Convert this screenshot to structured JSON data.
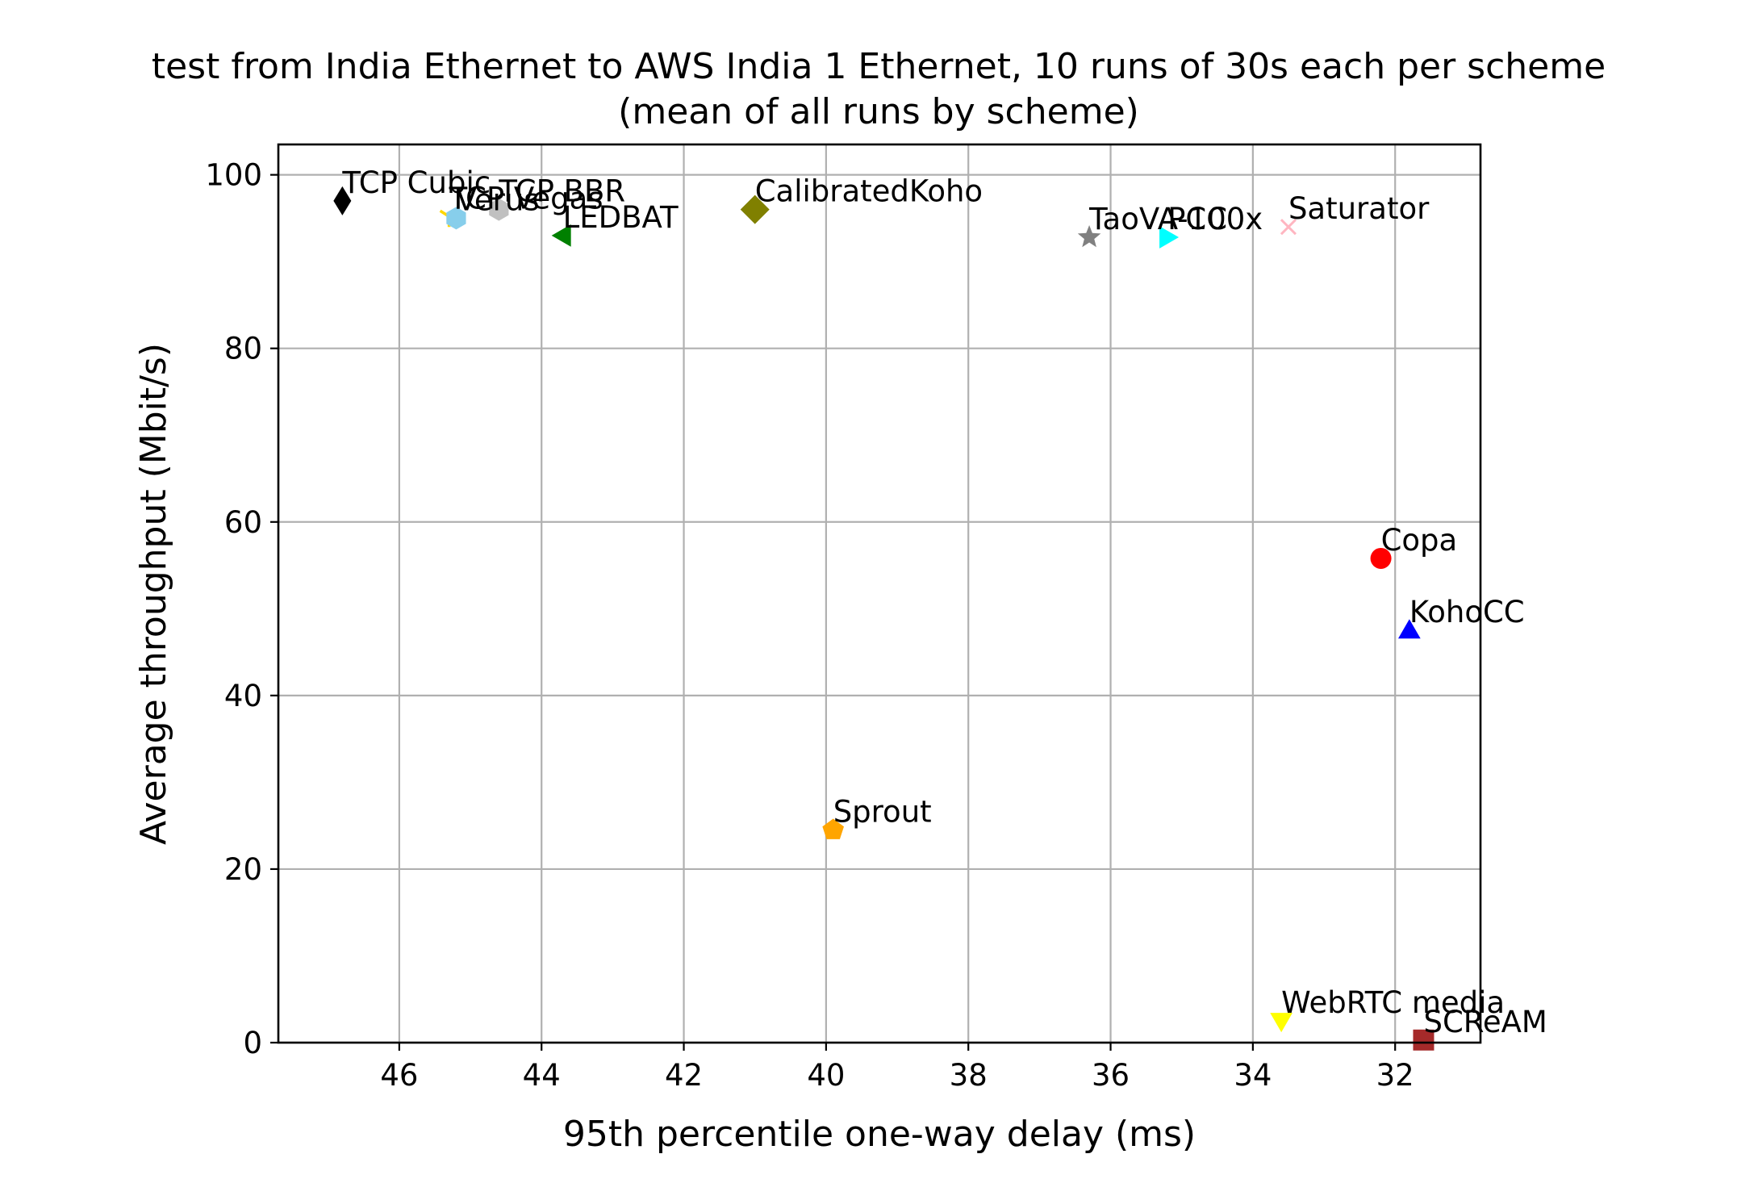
{
  "chart_data": {
    "type": "scatter",
    "title": "test from India Ethernet to AWS India 1 Ethernet, 10 runs of 30s each per scheme",
    "subtitle": "(mean of all runs by scheme)",
    "xlabel": "95th percentile one-way delay (ms)",
    "ylabel": "Average throughput (Mbit/s)",
    "xlim": [
      47.7,
      30.8
    ],
    "ylim": [
      0,
      103.5
    ],
    "x_inverted": true,
    "grid": true,
    "x_ticks": [
      46,
      44,
      42,
      40,
      38,
      36,
      34,
      32
    ],
    "y_ticks": [
      0,
      20,
      40,
      60,
      80,
      100
    ],
    "points": [
      {
        "label": "TCP Cubic",
        "x": 46.8,
        "y": 97.0,
        "marker": "thin_diamond",
        "color": "#000000"
      },
      {
        "label": "TCP BBR",
        "x": 44.6,
        "y": 96.0,
        "marker": "hexagon",
        "color": "#c0c0c0"
      },
      {
        "label": "TCP Vegas",
        "x": 45.3,
        "y": 95.2,
        "marker": "tri_down",
        "color": "#ffd700"
      },
      {
        "label": "Verus",
        "x": 45.2,
        "y": 95.0,
        "marker": "hexagon",
        "color": "#87ceeb"
      },
      {
        "label": "LEDBAT",
        "x": 43.7,
        "y": 93.0,
        "marker": "triangle_left",
        "color": "#008000"
      },
      {
        "label": "CalibratedKoho",
        "x": 41.0,
        "y": 96.0,
        "marker": "diamond",
        "color": "#808000"
      },
      {
        "label": "TaoVA-100x",
        "x": 36.3,
        "y": 92.8,
        "marker": "star",
        "color": "#808080"
      },
      {
        "label": "PCC",
        "x": 35.2,
        "y": 92.8,
        "marker": "triangle_right",
        "color": "#00ffff"
      },
      {
        "label": "Saturator",
        "x": 33.5,
        "y": 94.0,
        "marker": "x",
        "color": "#ffb6c1"
      },
      {
        "label": "Copa",
        "x": 32.2,
        "y": 55.8,
        "marker": "circle",
        "color": "#ff0000"
      },
      {
        "label": "KohoCC",
        "x": 31.8,
        "y": 47.5,
        "marker": "triangle_up",
        "color": "#0000ff"
      },
      {
        "label": "Sprout",
        "x": 39.9,
        "y": 24.5,
        "marker": "pentagon",
        "color": "#ffa500"
      },
      {
        "label": "WebRTC media",
        "x": 33.6,
        "y": 2.5,
        "marker": "triangle_down",
        "color": "#ffff00"
      },
      {
        "label": "SCReAM",
        "x": 31.6,
        "y": 0.3,
        "marker": "square",
        "color": "#a52a2a"
      }
    ]
  }
}
